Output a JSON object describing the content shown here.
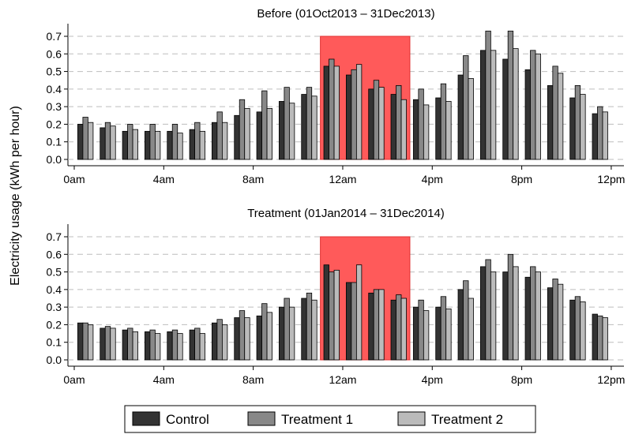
{
  "ylabel": "Electricity usage (kWh per hour)",
  "colors": {
    "control": "#333333",
    "treatment1": "#888888",
    "treatment2": "#bbbbbb",
    "highlight": "#ff5a5a",
    "highlight_edge": "#e03030",
    "grid": "#bdbdbd"
  },
  "legend": {
    "position": "bottom-center"
  },
  "chart_data": [
    {
      "type": "bar",
      "title": "Before (01Oct2013 – 31Dec2013)",
      "x_tick_labels": [
        "0am",
        "4am",
        "8am",
        "12am",
        "4pm",
        "8pm",
        "12pm"
      ],
      "x_tick_hours": [
        0,
        4,
        8,
        12,
        16,
        20,
        24
      ],
      "categories": [
        0,
        1,
        2,
        3,
        4,
        5,
        6,
        7,
        8,
        9,
        10,
        11,
        12,
        13,
        14,
        15,
        16,
        17,
        18,
        19,
        20,
        21,
        22,
        23
      ],
      "ylim": [
        0,
        0.75
      ],
      "yticks": [
        "0.0",
        "0.1",
        "0.2",
        "0.3",
        "0.4",
        "0.5",
        "0.6",
        "0.7"
      ],
      "grid": true,
      "highlight_hours": [
        11,
        15
      ],
      "series": [
        {
          "name": "Control",
          "values": [
            0.2,
            0.18,
            0.16,
            0.16,
            0.16,
            0.17,
            0.21,
            0.25,
            0.27,
            0.33,
            0.37,
            0.53,
            0.48,
            0.4,
            0.37,
            0.34,
            0.35,
            0.48,
            0.62,
            0.57,
            0.51,
            0.42,
            0.35,
            0.26
          ]
        },
        {
          "name": "Treatment 1",
          "values": [
            0.24,
            0.21,
            0.2,
            0.2,
            0.2,
            0.21,
            0.27,
            0.34,
            0.39,
            0.41,
            0.41,
            0.57,
            0.51,
            0.45,
            0.42,
            0.4,
            0.43,
            0.59,
            0.73,
            0.73,
            0.62,
            0.53,
            0.42,
            0.3
          ]
        },
        {
          "name": "Treatment 2",
          "values": [
            0.21,
            0.19,
            0.17,
            0.16,
            0.15,
            0.16,
            0.21,
            0.29,
            0.29,
            0.32,
            0.36,
            0.53,
            0.54,
            0.41,
            0.34,
            0.31,
            0.33,
            0.46,
            0.62,
            0.63,
            0.6,
            0.49,
            0.37,
            0.27
          ]
        }
      ]
    },
    {
      "type": "bar",
      "title": "Treatment (01Jan2014 – 31Dec2014)",
      "x_tick_labels": [
        "0am",
        "4am",
        "8am",
        "12am",
        "4pm",
        "8pm",
        "12pm"
      ],
      "x_tick_hours": [
        0,
        4,
        8,
        12,
        16,
        20,
        24
      ],
      "categories": [
        0,
        1,
        2,
        3,
        4,
        5,
        6,
        7,
        8,
        9,
        10,
        11,
        12,
        13,
        14,
        15,
        16,
        17,
        18,
        19,
        20,
        21,
        22,
        23
      ],
      "ylim": [
        0,
        0.75
      ],
      "yticks": [
        "0.0",
        "0.1",
        "0.2",
        "0.3",
        "0.4",
        "0.5",
        "0.6",
        "0.7"
      ],
      "grid": true,
      "highlight_hours": [
        11,
        15
      ],
      "series": [
        {
          "name": "Control",
          "values": [
            0.21,
            0.18,
            0.17,
            0.16,
            0.16,
            0.17,
            0.21,
            0.24,
            0.25,
            0.3,
            0.35,
            0.54,
            0.44,
            0.38,
            0.34,
            0.3,
            0.3,
            0.4,
            0.53,
            0.5,
            0.47,
            0.41,
            0.34,
            0.26
          ]
        },
        {
          "name": "Treatment 1",
          "values": [
            0.21,
            0.19,
            0.18,
            0.17,
            0.17,
            0.18,
            0.23,
            0.28,
            0.32,
            0.35,
            0.38,
            0.5,
            0.44,
            0.4,
            0.37,
            0.34,
            0.36,
            0.45,
            0.57,
            0.6,
            0.53,
            0.46,
            0.36,
            0.25
          ]
        },
        {
          "name": "Treatment 2",
          "values": [
            0.2,
            0.18,
            0.16,
            0.15,
            0.15,
            0.15,
            0.2,
            0.24,
            0.27,
            0.3,
            0.34,
            0.51,
            0.54,
            0.4,
            0.35,
            0.28,
            0.29,
            0.35,
            0.5,
            0.53,
            0.5,
            0.43,
            0.33,
            0.24
          ]
        }
      ]
    }
  ]
}
